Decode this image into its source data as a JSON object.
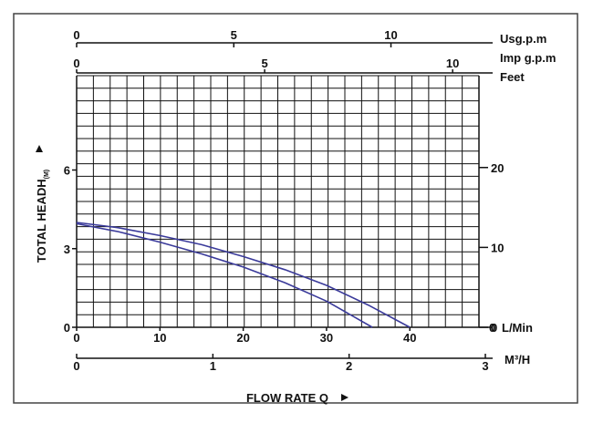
{
  "chart_data": {
    "type": "line",
    "colors": {
      "curves": "#3a3a9a",
      "frame": "#444444",
      "grid": "#111111",
      "text": "#111111"
    },
    "axes": {
      "top_usgpm": {
        "unit": "Usg.p.m",
        "range": [
          0,
          12.8
        ],
        "ticks": [
          "0",
          "5",
          "10"
        ]
      },
      "top_impgpm": {
        "unit": "Imp g.p.m",
        "range": [
          0,
          10.7
        ],
        "ticks": [
          "0",
          "5",
          "10"
        ]
      },
      "right_feet": {
        "unit": "Feet",
        "range": [
          0,
          31.5
        ],
        "ticks": [
          "0",
          "10",
          "20"
        ]
      },
      "left_head": {
        "label": "TOTAL HEADH",
        "sub": "(M)",
        "range": [
          0,
          9.6
        ],
        "ticks": [
          "0",
          "3",
          "6"
        ]
      },
      "bottom_lmin": {
        "unit": "L/Min",
        "range": [
          0,
          48.3
        ],
        "ticks": [
          "0",
          "10",
          "20",
          "30",
          "40"
        ]
      },
      "bottom_m3h": {
        "unit": "M³/H",
        "range": [
          0,
          3
        ],
        "ticks": [
          "0",
          "1",
          "2",
          "3"
        ]
      },
      "xlabel": "FLOW RATE Q"
    },
    "grid": true,
    "x_unit": "L/Min",
    "y_unit": "m",
    "series": [
      {
        "x": [
          0,
          5,
          10,
          15,
          20,
          25,
          30,
          35,
          40
        ],
        "y": [
          4.0,
          3.8,
          3.5,
          3.15,
          2.7,
          2.2,
          1.6,
          0.85,
          0.0
        ]
      },
      {
        "x": [
          0,
          5,
          10,
          15,
          20,
          25,
          30,
          35.5
        ],
        "y": [
          3.95,
          3.65,
          3.25,
          2.8,
          2.3,
          1.7,
          1.0,
          0.0
        ]
      }
    ]
  }
}
